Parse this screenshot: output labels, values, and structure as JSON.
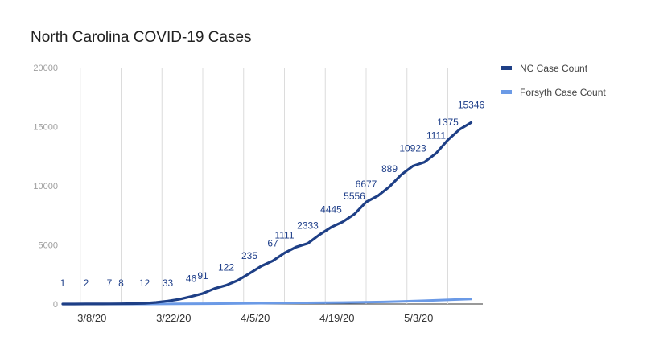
{
  "title": "North Carolina COVID-19 Cases",
  "colors": {
    "nc": "#1e3f86",
    "forsyth": "#6b9ae6",
    "grid": "#dcdcdc",
    "axis": "#333333"
  },
  "chart_data": {
    "type": "line",
    "title": "North Carolina COVID-19 Cases",
    "xlabel": "",
    "ylabel": "",
    "ylim": [
      0,
      20000
    ],
    "yticks": [
      0,
      5000,
      10000,
      15000,
      20000
    ],
    "xticks": [
      "3/8/20",
      "3/22/20",
      "4/5/20",
      "4/19/20",
      "5/3/20"
    ],
    "x_start": "3/3/20",
    "x_end": "5/14/20",
    "grid": true,
    "legend_position": "right",
    "series": [
      {
        "name": "NC Case Count",
        "color": "#1e3f86",
        "data_labels": [
          "1",
          "2",
          "7",
          "8",
          "12",
          "33",
          "46",
          "91",
          "122",
          "235",
          "67",
          "1111",
          "2333",
          "4445",
          "5556",
          "6677",
          "889",
          "10923",
          "1111",
          "1375",
          "15346"
        ],
        "points": [
          {
            "x": "3/3/20",
            "y": 1
          },
          {
            "x": "3/5/20",
            "y": 2
          },
          {
            "x": "3/7/20",
            "y": 7
          },
          {
            "x": "3/9/20",
            "y": 8
          },
          {
            "x": "3/11/20",
            "y": 12
          },
          {
            "x": "3/13/20",
            "y": 23
          },
          {
            "x": "3/15/20",
            "y": 33
          },
          {
            "x": "3/17/20",
            "y": 64
          },
          {
            "x": "3/19/20",
            "y": 137
          },
          {
            "x": "3/21/20",
            "y": 255
          },
          {
            "x": "3/23/20",
            "y": 398
          },
          {
            "x": "3/25/20",
            "y": 636
          },
          {
            "x": "3/27/20",
            "y": 888
          },
          {
            "x": "3/29/20",
            "y": 1307
          },
          {
            "x": "3/31/20",
            "y": 1584
          },
          {
            "x": "4/2/20",
            "y": 2000
          },
          {
            "x": "4/4/20",
            "y": 2585
          },
          {
            "x": "4/6/20",
            "y": 3200
          },
          {
            "x": "4/8/20",
            "y": 3651
          },
          {
            "x": "4/10/20",
            "y": 4312
          },
          {
            "x": "4/12/20",
            "y": 4816
          },
          {
            "x": "4/14/20",
            "y": 5123
          },
          {
            "x": "4/16/20",
            "y": 5859
          },
          {
            "x": "4/18/20",
            "y": 6493
          },
          {
            "x": "4/20/20",
            "y": 6951
          },
          {
            "x": "4/22/20",
            "y": 7608
          },
          {
            "x": "4/24/20",
            "y": 8623
          },
          {
            "x": "4/26/20",
            "y": 9142
          },
          {
            "x": "4/28/20",
            "y": 9923
          },
          {
            "x": "4/30/20",
            "y": 10923
          },
          {
            "x": "5/2/20",
            "y": 11664
          },
          {
            "x": "5/4/20",
            "y": 12000
          },
          {
            "x": "5/6/20",
            "y": 12758
          },
          {
            "x": "5/8/20",
            "y": 13868
          },
          {
            "x": "5/10/20",
            "y": 14764
          },
          {
            "x": "5/12/20",
            "y": 15346
          }
        ]
      },
      {
        "name": "Forsyth Case Count",
        "color": "#6b9ae6",
        "points": [
          {
            "x": "3/3/20",
            "y": 0
          },
          {
            "x": "3/17/20",
            "y": 2
          },
          {
            "x": "3/23/20",
            "y": 16
          },
          {
            "x": "3/30/20",
            "y": 35
          },
          {
            "x": "4/6/20",
            "y": 70
          },
          {
            "x": "4/13/20",
            "y": 100
          },
          {
            "x": "4/20/20",
            "y": 130
          },
          {
            "x": "4/27/20",
            "y": 180
          },
          {
            "x": "5/4/20",
            "y": 280
          },
          {
            "x": "5/12/20",
            "y": 420
          }
        ]
      }
    ]
  }
}
